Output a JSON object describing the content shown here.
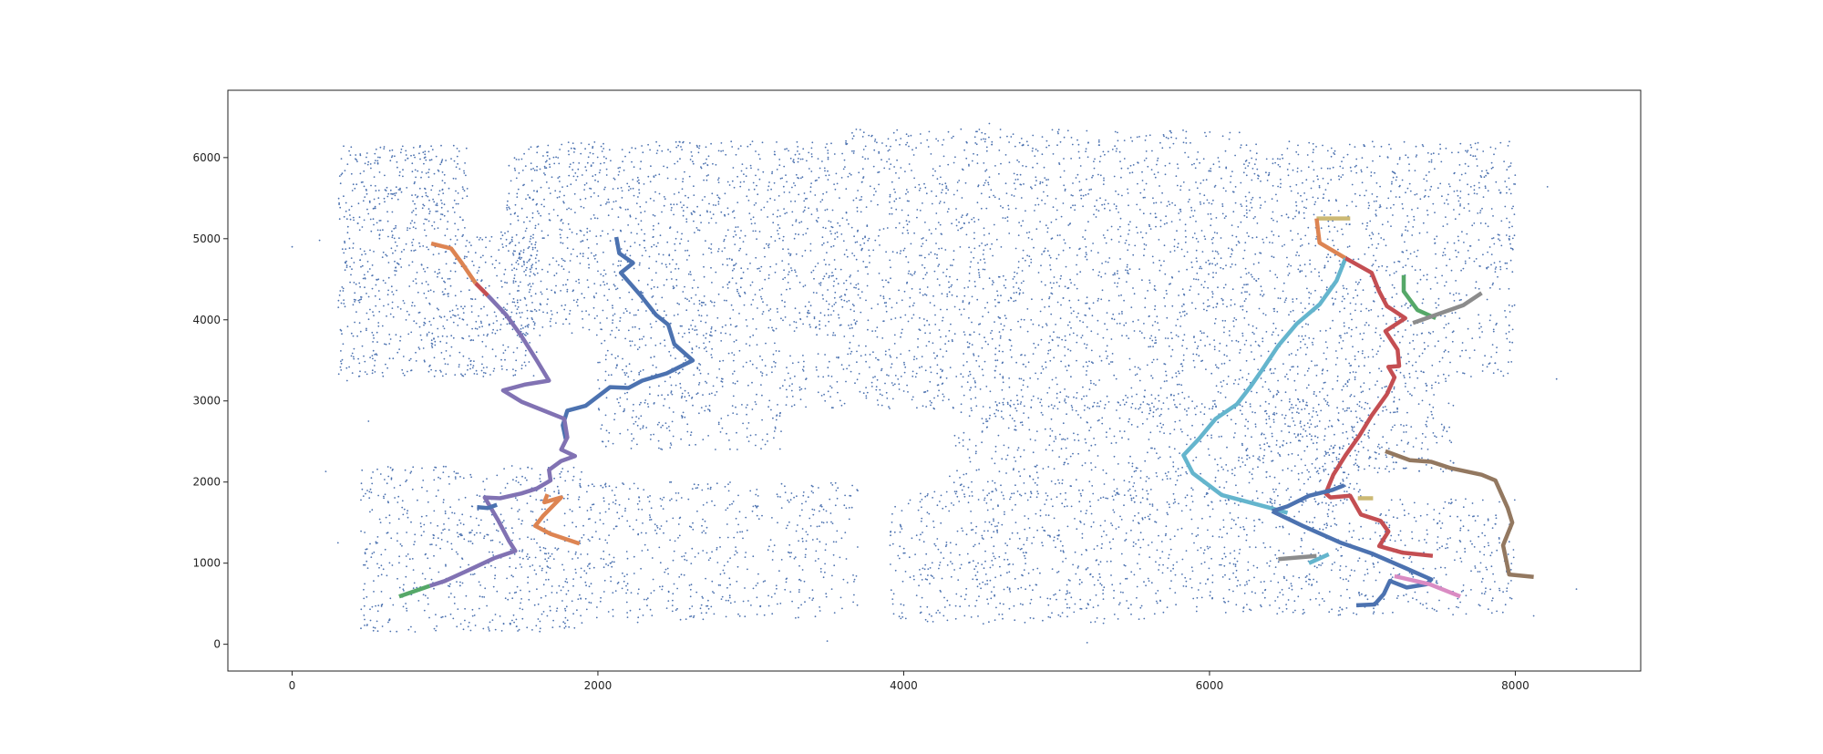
{
  "chart_data": {
    "type": "scatter",
    "title": "",
    "xlabel": "",
    "ylabel": "",
    "xlim": [
      -420,
      8820
    ],
    "ylim": [
      -330,
      6830
    ],
    "grid": false,
    "legend": "none",
    "x_ticks": [
      0,
      2000,
      4000,
      6000,
      8000
    ],
    "y_ticks": [
      0,
      1000,
      2000,
      3000,
      4000,
      5000,
      6000
    ],
    "x_tick_labels": [
      "0",
      "2000",
      "4000",
      "6000",
      "8000"
    ],
    "y_tick_labels": [
      "0",
      "1000",
      "2000",
      "3000",
      "4000",
      "5000",
      "6000"
    ],
    "scatter_series": {
      "color": "#4c72b0",
      "marker_radius": 0.9,
      "regions": [
        {
          "x": [
            300,
            1150
          ],
          "y": [
            5100,
            6150
          ],
          "count": 300
        },
        {
          "x": [
            300,
            1600
          ],
          "y": [
            3300,
            5100
          ],
          "count": 650
        },
        {
          "x": [
            1400,
            3600
          ],
          "y": [
            3800,
            6200
          ],
          "count": 1300
        },
        {
          "x": [
            3600,
            6200
          ],
          "y": [
            3600,
            6350
          ],
          "count": 1500
        },
        {
          "x": [
            6200,
            8000
          ],
          "y": [
            3300,
            6200
          ],
          "count": 1100
        },
        {
          "x": [
            2000,
            3200
          ],
          "y": [
            2400,
            3800
          ],
          "count": 350
        },
        {
          "x": [
            3200,
            6200
          ],
          "y": [
            2900,
            3600
          ],
          "count": 450
        },
        {
          "x": [
            6200,
            7600
          ],
          "y": [
            2100,
            3300
          ],
          "count": 400
        },
        {
          "x": [
            450,
            1900
          ],
          "y": [
            150,
            2200
          ],
          "count": 650
        },
        {
          "x": [
            1900,
            3700
          ],
          "y": [
            300,
            2000
          ],
          "count": 550
        },
        {
          "x": [
            3900,
            5600
          ],
          "y": [
            250,
            1900
          ],
          "count": 550
        },
        {
          "x": [
            4300,
            7000
          ],
          "y": [
            1700,
            3000
          ],
          "count": 650
        },
        {
          "x": [
            5600,
            8000
          ],
          "y": [
            350,
            1800
          ],
          "count": 650
        }
      ],
      "outliers": [
        [
          0,
          4900
        ],
        [
          180,
          4980
        ],
        [
          360,
          3250
        ],
        [
          500,
          2750
        ],
        [
          220,
          2130
        ],
        [
          300,
          1250
        ],
        [
          8210,
          5640
        ],
        [
          8270,
          3270
        ],
        [
          8400,
          680
        ],
        [
          8120,
          350
        ],
        [
          4560,
          6420
        ],
        [
          5070,
          450
        ],
        [
          5200,
          20
        ],
        [
          2260,
          270
        ],
        [
          3500,
          40
        ]
      ]
    },
    "routes": [
      {
        "color": "#4c72b0",
        "points": [
          [
            2120,
            5020
          ],
          [
            2140,
            4820
          ],
          [
            2230,
            4700
          ],
          [
            2150,
            4580
          ],
          [
            2280,
            4300
          ],
          [
            2380,
            4060
          ],
          [
            2460,
            3940
          ],
          [
            2500,
            3700
          ],
          [
            2620,
            3500
          ],
          [
            2450,
            3340
          ],
          [
            2290,
            3250
          ],
          [
            2200,
            3160
          ],
          [
            2080,
            3170
          ],
          [
            1920,
            2940
          ],
          [
            1800,
            2880
          ],
          [
            1770,
            2700
          ],
          [
            1790,
            2530
          ]
        ]
      },
      {
        "color": "#dd8452",
        "points": [
          [
            910,
            4940
          ],
          [
            1040,
            4880
          ],
          [
            1110,
            4700
          ],
          [
            1200,
            4450
          ]
        ]
      },
      {
        "color": "#c44e52",
        "points": [
          [
            1200,
            4450
          ],
          [
            1280,
            4300
          ]
        ]
      },
      {
        "color": "#8172b3",
        "points": [
          [
            1280,
            4300
          ],
          [
            1400,
            4060
          ],
          [
            1500,
            3800
          ],
          [
            1600,
            3500
          ],
          [
            1680,
            3250
          ],
          [
            1520,
            3200
          ],
          [
            1380,
            3130
          ],
          [
            1500,
            2990
          ],
          [
            1620,
            2900
          ],
          [
            1780,
            2780
          ],
          [
            1800,
            2550
          ],
          [
            1760,
            2400
          ],
          [
            1850,
            2320
          ],
          [
            1760,
            2260
          ],
          [
            1680,
            2150
          ],
          [
            1690,
            2020
          ],
          [
            1600,
            1920
          ],
          [
            1500,
            1860
          ],
          [
            1360,
            1800
          ],
          [
            1260,
            1810
          ],
          [
            1350,
            1520
          ],
          [
            1420,
            1270
          ],
          [
            1460,
            1150
          ],
          [
            1320,
            1060
          ],
          [
            1150,
            910
          ],
          [
            1000,
            780
          ],
          [
            900,
            720
          ]
        ]
      },
      {
        "color": "#4c72b0",
        "points": [
          [
            1210,
            1690
          ],
          [
            1280,
            1680
          ],
          [
            1340,
            1720
          ]
        ]
      },
      {
        "color": "#dd8452",
        "points": [
          [
            1670,
            1850
          ],
          [
            1650,
            1750
          ],
          [
            1760,
            1810
          ],
          [
            1640,
            1580
          ],
          [
            1590,
            1460
          ],
          [
            1690,
            1360
          ],
          [
            1880,
            1240
          ]
        ]
      },
      {
        "color": "#55a868",
        "points": [
          [
            900,
            720
          ],
          [
            700,
            590
          ]
        ]
      },
      {
        "color": "#ccb974",
        "points": [
          [
            6700,
            5250
          ],
          [
            6920,
            5250
          ]
        ]
      },
      {
        "color": "#dd8452",
        "points": [
          [
            6700,
            5250
          ],
          [
            6720,
            4950
          ],
          [
            6890,
            4760
          ]
        ]
      },
      {
        "color": "#64b5cd",
        "points": [
          [
            6890,
            4760
          ],
          [
            6830,
            4480
          ],
          [
            6720,
            4190
          ],
          [
            6570,
            3950
          ],
          [
            6450,
            3680
          ],
          [
            6350,
            3400
          ],
          [
            6270,
            3180
          ],
          [
            6180,
            2960
          ],
          [
            6040,
            2780
          ],
          [
            5930,
            2530
          ],
          [
            5830,
            2330
          ],
          [
            5890,
            2110
          ],
          [
            6080,
            1840
          ],
          [
            6400,
            1680
          ],
          [
            6510,
            1620
          ]
        ]
      },
      {
        "color": "#c44e52",
        "points": [
          [
            6890,
            4760
          ],
          [
            7060,
            4580
          ],
          [
            7110,
            4350
          ],
          [
            7160,
            4170
          ],
          [
            7280,
            4020
          ],
          [
            7150,
            3860
          ],
          [
            7230,
            3630
          ],
          [
            7240,
            3430
          ],
          [
            7170,
            3420
          ],
          [
            7210,
            3290
          ],
          [
            7160,
            3080
          ],
          [
            7060,
            2820
          ],
          [
            6980,
            2570
          ],
          [
            6890,
            2330
          ],
          [
            6810,
            2090
          ],
          [
            6760,
            1860
          ],
          [
            6790,
            1810
          ],
          [
            6920,
            1830
          ],
          [
            6990,
            1600
          ],
          [
            7120,
            1520
          ],
          [
            7170,
            1390
          ],
          [
            7110,
            1210
          ],
          [
            7260,
            1130
          ],
          [
            7460,
            1090
          ]
        ]
      },
      {
        "color": "#55a868",
        "points": [
          [
            7270,
            4550
          ],
          [
            7270,
            4350
          ],
          [
            7360,
            4120
          ],
          [
            7480,
            4020
          ]
        ]
      },
      {
        "color": "#8c8c8c",
        "points": [
          [
            7330,
            3960
          ],
          [
            7660,
            4180
          ],
          [
            7780,
            4330
          ]
        ]
      },
      {
        "color": "#4c72b0",
        "points": [
          [
            6410,
            1640
          ],
          [
            6510,
            1700
          ],
          [
            6650,
            1830
          ],
          [
            6800,
            1900
          ],
          [
            6880,
            1960
          ]
        ]
      },
      {
        "color": "#4c72b0",
        "points": [
          [
            6410,
            1640
          ],
          [
            6610,
            1460
          ],
          [
            6860,
            1250
          ],
          [
            7060,
            1120
          ],
          [
            7280,
            940
          ],
          [
            7450,
            800
          ],
          [
            7420,
            740
          ],
          [
            7290,
            700
          ],
          [
            7180,
            780
          ],
          [
            7140,
            620
          ],
          [
            7080,
            490
          ],
          [
            6960,
            480
          ]
        ]
      },
      {
        "color": "#937860",
        "points": [
          [
            7150,
            2380
          ],
          [
            7310,
            2270
          ],
          [
            7450,
            2250
          ],
          [
            7580,
            2170
          ],
          [
            7780,
            2090
          ],
          [
            7870,
            2020
          ],
          [
            7950,
            1680
          ],
          [
            7980,
            1500
          ],
          [
            7920,
            1220
          ],
          [
            7960,
            860
          ],
          [
            8120,
            830
          ]
        ]
      },
      {
        "color": "#ccb974",
        "points": [
          [
            6970,
            1800
          ],
          [
            7070,
            1800
          ]
        ]
      },
      {
        "color": "#8c8c8c",
        "points": [
          [
            6450,
            1050
          ],
          [
            6700,
            1090
          ]
        ]
      },
      {
        "color": "#64b5cd",
        "points": [
          [
            6650,
            1000
          ],
          [
            6780,
            1110
          ]
        ]
      },
      {
        "color": "#da8bc3",
        "points": [
          [
            7210,
            840
          ],
          [
            7440,
            740
          ],
          [
            7640,
            590
          ]
        ]
      }
    ]
  }
}
